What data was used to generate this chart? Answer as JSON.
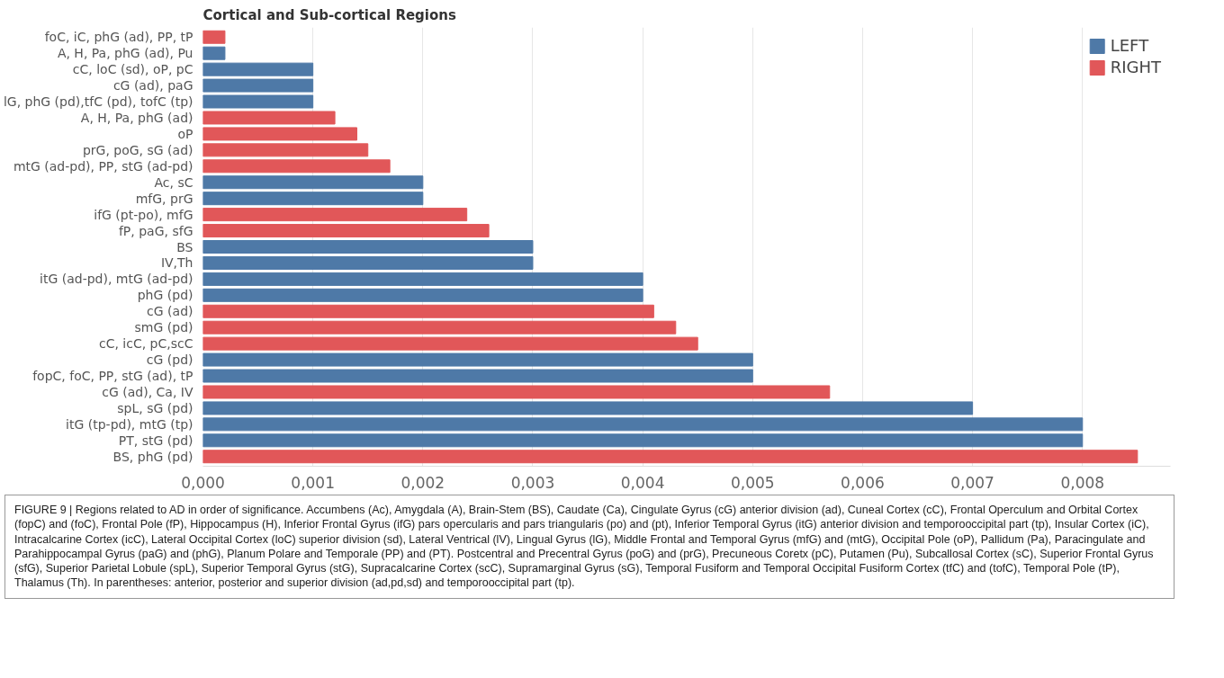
{
  "chart_data": {
    "type": "bar",
    "orientation": "horizontal",
    "ylabel": "Cortical and Sub-cortical Regions",
    "categories": [
      "foC, iC, phG (ad), PP, tP",
      "A, H, Pa, phG (ad), Pu",
      "cC, loC (sd), oP, pC",
      "cG (ad), paG",
      "lG, phG (pd),tfC (pd), tofC (tp)",
      "A, H, Pa, phG (ad)",
      "oP",
      "prG, poG, sG (ad)",
      "mtG (ad-pd), PP, stG (ad-pd)",
      "Ac, sC",
      "mfG, prG",
      "ifG (pt-po), mfG",
      "fP, paG, sfG",
      "BS",
      "IV,Th",
      "itG (ad-pd), mtG (ad-pd)",
      "phG (pd)",
      "cG (ad)",
      "smG (pd)",
      "cC, icC, pC,scC",
      "cG (pd)",
      "fopC, foC, PP, stG (ad), tP",
      "cG (ad), Ca, IV",
      "spL, sG (pd)",
      "itG (tp-pd), mtG (tp)",
      "PT, stG (pd)",
      "BS, phG (pd)"
    ],
    "series": [
      {
        "name": "LEFT",
        "color": "#4e79a7",
        "values": [
          null,
          0.0002,
          0.001,
          0.001,
          0.001,
          null,
          null,
          null,
          null,
          0.002,
          0.002,
          null,
          null,
          0.003,
          0.003,
          0.004,
          0.004,
          null,
          null,
          null,
          0.005,
          0.005,
          null,
          0.007,
          0.008,
          0.008,
          null
        ]
      },
      {
        "name": "RIGHT",
        "color": "#e15759",
        "values": [
          0.0002,
          null,
          null,
          null,
          null,
          0.0012,
          0.0014,
          0.0015,
          0.0017,
          null,
          null,
          0.0024,
          0.0026,
          null,
          null,
          null,
          null,
          0.0041,
          0.0043,
          0.0045,
          null,
          null,
          0.0057,
          null,
          null,
          null,
          0.0085
        ]
      }
    ],
    "xlim": [
      0,
      0.0088
    ],
    "xticks": [
      {
        "value": 0,
        "label": "0,000"
      },
      {
        "value": 0.001,
        "label": "0,001"
      },
      {
        "value": 0.002,
        "label": "0,002"
      },
      {
        "value": 0.003,
        "label": "0,003"
      },
      {
        "value": 0.004,
        "label": "0,004"
      },
      {
        "value": 0.005,
        "label": "0,005"
      },
      {
        "value": 0.006,
        "label": "0,006"
      },
      {
        "value": 0.007,
        "label": "0,007"
      },
      {
        "value": 0.008,
        "label": "0,008"
      }
    ],
    "grid": "x",
    "legend": "top right",
    "annotations": [
      "FIGURE 9 | Regions related to AD in order of significance. Accumbens (Ac), Amygdala (A), Brain-Stem (BS), Caudate (Ca), Cingulate Gyrus (cG) anterior division (ad), Cuneal Cortex (cC), Frontal Operculum and Orbital Cortex (fopC) and (foC), Frontal Pole (fP), Hippocampus (H), Inferior Frontal Gyrus (ifG) pars opercularis and pars triangularis (po) and (pt), Inferior Temporal Gyrus (itG) anterior division and temporooccipital part (tp), Insular Cortex (iC), Intracalcarine Cortex (icC), Lateral Occipital Cortex (loC) superior division (sd), Lateral Ventrical (lV), Lingual Gyrus (lG), Middle Frontal and Temporal Gyrus (mfG) and (mtG), Occipital Pole (oP), Pallidum (Pa), Paracingulate and Parahippocampal Gyrus (paG) and (phG), Planum Polare and Temporale (PP) and (PT). Postcentral and Precentral Gyrus (poG) and (prG), Precuneous Coretx (pC), Putamen (Pu), Subcallosal Cortex (sC), Superior Frontal Gyrus (sfG), Superior Parietal Lobule (spL), Superior Temporal Gyrus (stG), Supracalcarine Cortex (scC), Supramarginal Gyrus (sG), Temporal Fusiform and Temporal Occipital Fusiform Cortex (tfC) and (tofC), Temporal Pole (tP), Thalamus (Th). In parentheses: anterior, posterior and superior division (ad,pd,sd) and temporooccipital part (tp)."
    ]
  }
}
